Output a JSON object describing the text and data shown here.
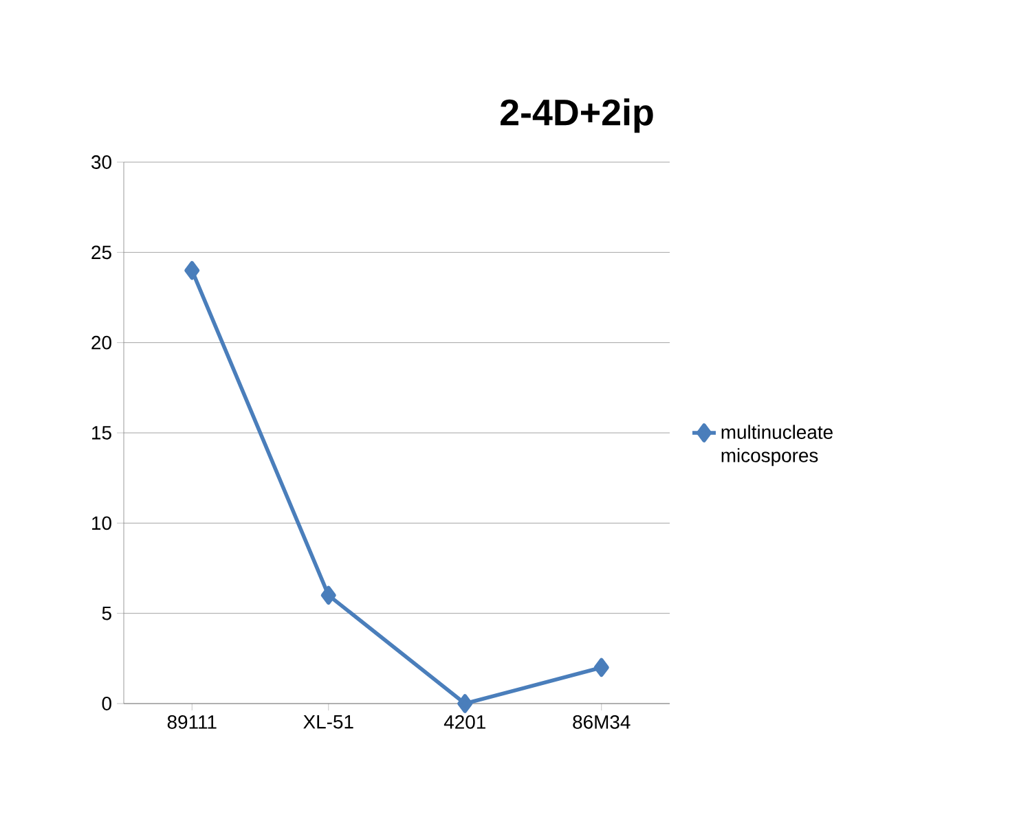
{
  "chart_data": {
    "type": "line",
    "title": "2-4D+2ip",
    "categories": [
      "89111",
      "XL-51",
      "4201",
      "86M34"
    ],
    "series": [
      {
        "name": "multinucleate micospores",
        "color": "#4a7ebb",
        "values": [
          24,
          6,
          0,
          2
        ]
      }
    ],
    "ylim": [
      0,
      30
    ],
    "yticks": [
      0,
      5,
      10,
      15,
      20,
      25,
      30
    ],
    "grid": "y",
    "legend": "right",
    "marker": "diamond",
    "line_style": "solid"
  }
}
